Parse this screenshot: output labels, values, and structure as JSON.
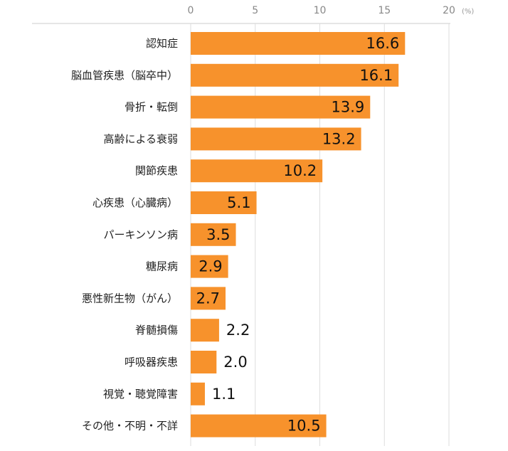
{
  "chart_data": {
    "type": "bar",
    "orientation": "horizontal",
    "unit": "(%)",
    "xlim": [
      0,
      20
    ],
    "xticks": [
      "0",
      "5",
      "10",
      "15",
      "20"
    ],
    "grid": true,
    "bar_color": "#F7922C",
    "categories": [
      "認知症",
      "脳血管疾患（脳卒中）",
      "骨折・転倒",
      "高齢による衰弱",
      "関節疾患",
      "心疾患（心臓病）",
      "パーキンソン病",
      "糖尿病",
      "悪性新生物（がん）",
      "脊髄損傷",
      "呼吸器疾患",
      "視覚・聴覚障害",
      "その他・不明・不詳"
    ],
    "values": [
      16.6,
      16.1,
      13.9,
      13.2,
      10.2,
      5.1,
      3.5,
      2.9,
      2.7,
      2.2,
      2.0,
      1.1,
      10.5
    ],
    "value_labels": [
      "16.6",
      "16.1",
      "13.9",
      "13.2",
      "10.2",
      "5.1",
      "3.5",
      "2.9",
      "2.7",
      "2.2",
      "2.0",
      "1.1",
      "10.5"
    ]
  }
}
